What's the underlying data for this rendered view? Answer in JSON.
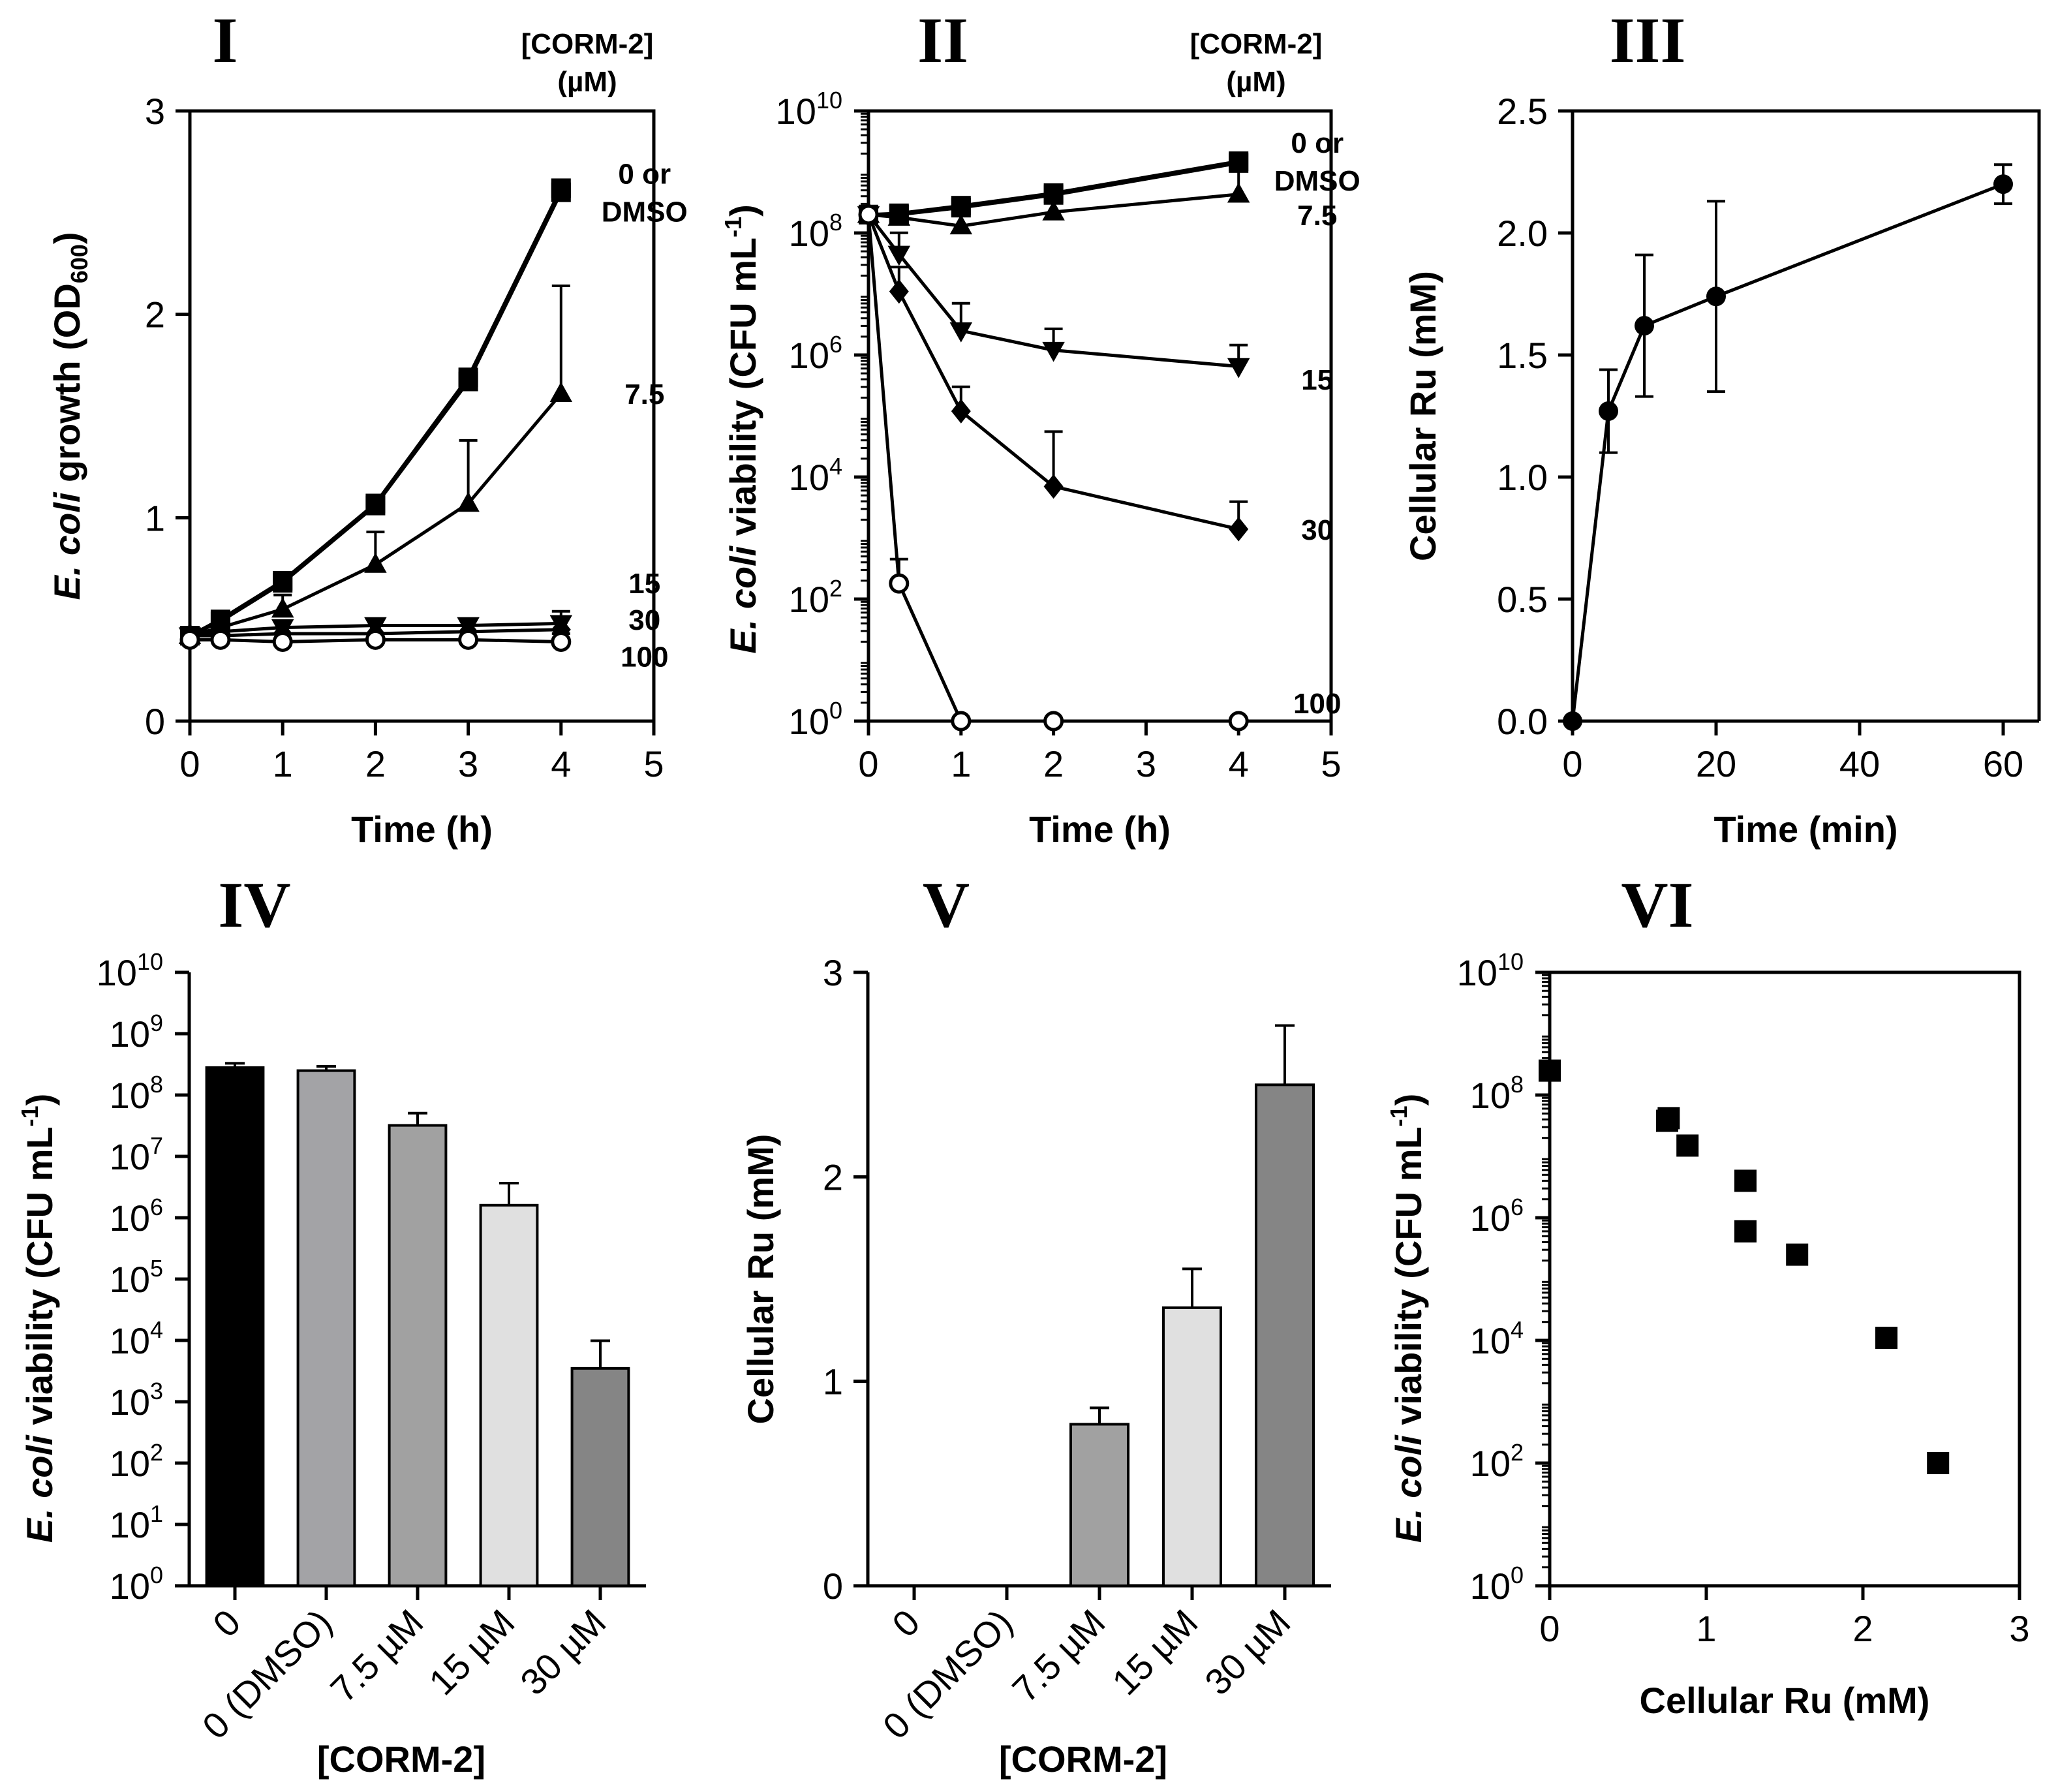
{
  "figure": {
    "background": "#ffffff",
    "ink": "#000000"
  },
  "chart_data": [
    {
      "id": "p1",
      "panel": "I",
      "type": "line",
      "xscale": "linear",
      "yscale": "linear",
      "xlabel": "Time (h)",
      "ylabel_parts": [
        "E. coli",
        " growth  (OD",
        "600",
        ")"
      ],
      "xlim": [
        0,
        5
      ],
      "ylim": [
        0,
        3
      ],
      "xticks": [
        0,
        1,
        2,
        3,
        4,
        5
      ],
      "yticks": [
        0,
        1,
        2,
        3
      ],
      "legend_title": [
        "[CORM-2]",
        "(µM)"
      ],
      "series": [
        {
          "name": "0",
          "marker": "square",
          "x": [
            0,
            0.33,
            1,
            2,
            3,
            4
          ],
          "y": [
            0.42,
            0.49,
            0.68,
            1.06,
            1.67,
            2.6
          ],
          "err": [
            0,
            0,
            0,
            0,
            0.05,
            0.05
          ]
        },
        {
          "name": "DMSO",
          "marker": "square",
          "x": [
            0,
            0.33,
            1,
            2,
            3,
            4
          ],
          "y": [
            0.42,
            0.5,
            0.69,
            1.07,
            1.69,
            2.62
          ],
          "err": [
            0,
            0,
            0,
            0,
            0,
            0
          ]
        },
        {
          "name": "7.5",
          "marker": "triangle-up",
          "x": [
            0,
            0.33,
            1,
            2,
            3,
            4
          ],
          "y": [
            0.42,
            0.46,
            0.55,
            0.77,
            1.07,
            1.61
          ],
          "err": [
            0,
            0,
            0.07,
            0.16,
            0.31,
            0.53
          ]
        },
        {
          "name": "15",
          "marker": "triangle-down",
          "x": [
            0,
            0.33,
            1,
            2,
            3,
            4
          ],
          "y": [
            0.42,
            0.44,
            0.46,
            0.47,
            0.47,
            0.48
          ],
          "err": [
            0,
            0,
            0,
            0,
            0,
            0.06
          ]
        },
        {
          "name": "30",
          "marker": "diamond",
          "x": [
            0,
            0.33,
            1,
            2,
            3,
            4
          ],
          "y": [
            0.42,
            0.42,
            0.43,
            0.43,
            0.44,
            0.45
          ],
          "err": [
            0,
            0,
            0,
            0,
            0,
            0
          ]
        },
        {
          "name": "100",
          "marker": "circle-open",
          "x": [
            0,
            0.33,
            1,
            2,
            3,
            4
          ],
          "y": [
            0.4,
            0.4,
            0.39,
            0.4,
            0.4,
            0.39
          ],
          "err": [
            0,
            0,
            0,
            0,
            0,
            0.04
          ]
        }
      ],
      "annotations": [
        {
          "lines": [
            "0 or",
            "DMSO"
          ],
          "x": 4.9,
          "y": 2.6
        },
        {
          "lines": [
            "7.5"
          ],
          "x": 4.9,
          "y": 1.61
        },
        {
          "lines": [
            "15"
          ],
          "x": 4.9,
          "y": 0.68
        },
        {
          "lines": [
            "30"
          ],
          "x": 4.9,
          "y": 0.5
        },
        {
          "lines": [
            "100"
          ],
          "x": 4.9,
          "y": 0.32
        }
      ]
    },
    {
      "id": "p2",
      "panel": "II",
      "type": "line",
      "xscale": "linear",
      "yscale": "log",
      "xlabel": "Time (h)",
      "ylabel_parts": [
        "E. coli",
        " viability (CFU mL",
        "-1",
        ")"
      ],
      "xlim": [
        0,
        5
      ],
      "ylim": [
        0,
        10
      ],
      "xticks": [
        0,
        1,
        2,
        3,
        4,
        5
      ],
      "ytick_exponents": [
        0,
        2,
        4,
        6,
        8,
        10
      ],
      "legend_title": [
        "[CORM-2]",
        "(µM)"
      ],
      "series": [
        {
          "name": "0",
          "marker": "square",
          "x": [
            0,
            0.33,
            1,
            2,
            4
          ],
          "y": [
            200000000,
            210000000,
            280000000,
            450000000,
            1500000000
          ],
          "err_log": [
            0,
            0,
            0,
            0,
            0
          ]
        },
        {
          "name": "DMSO",
          "marker": "square",
          "x": [
            0,
            0.33,
            1,
            2,
            4
          ],
          "y": [
            200000000,
            200000000,
            260000000,
            420000000,
            1400000000
          ],
          "err_log": [
            0,
            0,
            0,
            0,
            0
          ]
        },
        {
          "name": "7.5",
          "marker": "triangle-up",
          "x": [
            0,
            0.33,
            1,
            2,
            4
          ],
          "y": [
            200000000,
            180000000,
            130000000,
            220000000,
            430000000
          ],
          "err_log": [
            0,
            0,
            0,
            0.15,
            0.5
          ]
        },
        {
          "name": "15",
          "marker": "triangle-down",
          "x": [
            0,
            0.33,
            1,
            2,
            4
          ],
          "y": [
            200000000,
            45000000,
            2500000,
            1200000,
            650000
          ],
          "err_log": [
            0,
            0.35,
            0.45,
            0.35,
            0.35
          ]
        },
        {
          "name": "30",
          "marker": "diamond",
          "x": [
            0,
            0.33,
            1,
            2,
            4
          ],
          "y": [
            200000000,
            11000000,
            120000,
            7000,
            1400
          ],
          "err_log": [
            0,
            0.4,
            0.4,
            0.9,
            0.45
          ]
        },
        {
          "name": "100",
          "marker": "circle-open",
          "x": [
            0,
            0.33,
            1,
            2,
            4
          ],
          "y": [
            200000000,
            180,
            1,
            1,
            1
          ],
          "err_log": [
            0,
            0.4,
            0,
            0,
            0
          ]
        }
      ],
      "annotations": [
        {
          "lines": [
            "0 or",
            "DMSO"
          ],
          "x": 4.85,
          "y": 1500000000
        },
        {
          "lines": [
            "7.5"
          ],
          "x": 4.85,
          "y": 200000000
        },
        {
          "lines": [
            "15"
          ],
          "x": 4.85,
          "y": 400000
        },
        {
          "lines": [
            "30"
          ],
          "x": 4.85,
          "y": 1400
        },
        {
          "lines": [
            "100"
          ],
          "x": 4.85,
          "y": 2
        }
      ]
    },
    {
      "id": "p3",
      "panel": "III",
      "type": "line",
      "xscale": "linear",
      "yscale": "linear",
      "xlabel": "Time (min)",
      "ylabel_parts": [
        "Cellular Ru (mM)"
      ],
      "xlim": [
        0,
        65
      ],
      "ylim": [
        0,
        2.5
      ],
      "xticks": [
        0,
        20,
        40,
        60
      ],
      "yticks": [
        0,
        0.5,
        1,
        1.5,
        2,
        2.5
      ],
      "ytick_labels": [
        "0.0",
        "0.5",
        "1.0",
        "1.5",
        "2.0",
        "2.5"
      ],
      "series": [
        {
          "name": "Ru",
          "marker": "circle",
          "x": [
            0,
            5,
            10,
            20,
            60
          ],
          "y": [
            0,
            1.27,
            1.62,
            1.74,
            2.2
          ],
          "err": [
            0,
            0.17,
            0.29,
            0.39,
            0.08
          ]
        }
      ]
    },
    {
      "id": "p4",
      "panel": "IV",
      "type": "bar",
      "yscale": "log",
      "xlabel": "[CORM-2]",
      "ylabel_parts": [
        "E. coli",
        " viability (CFU mL",
        "-1",
        ")"
      ],
      "ylim": [
        0,
        10
      ],
      "ytick_exponents": [
        0,
        1,
        2,
        3,
        4,
        5,
        6,
        7,
        8,
        9,
        10
      ],
      "categories": [
        "0",
        "0 (DMSO)",
        "7.5 µM",
        "15 µM",
        "30 µM"
      ],
      "values": [
        280000000,
        250000000,
        32000000,
        1600000,
        3500
      ],
      "err_log": [
        0.07,
        0.07,
        0.2,
        0.36,
        0.45
      ],
      "colors": [
        "#000000",
        "#a3a3a6",
        "#a1a1a1",
        "#e0e0e0",
        "#858585"
      ]
    },
    {
      "id": "p5",
      "panel": "V",
      "type": "bar",
      "yscale": "linear",
      "xlabel": "[CORM-2]",
      "ylabel_parts": [
        "Cellular Ru (mM)"
      ],
      "ylim": [
        0,
        3
      ],
      "yticks": [
        0,
        1,
        2,
        3
      ],
      "categories": [
        "0",
        "0 (DMSO)",
        "7.5 µM",
        "15 µM",
        "30 µM"
      ],
      "values": [
        0,
        0,
        0.79,
        1.36,
        2.45
      ],
      "err": [
        0,
        0,
        0.08,
        0.19,
        0.29
      ],
      "colors": [
        "#000000",
        "#a3a3a6",
        "#a1a1a1",
        "#e0e0e0",
        "#858585"
      ]
    },
    {
      "id": "p6",
      "panel": "VI",
      "type": "scatter",
      "xscale": "linear",
      "yscale": "log",
      "xlabel": "Cellular Ru (mM)",
      "ylabel_parts": [
        "E. coli",
        " viability (CFU mL",
        "-1",
        ")"
      ],
      "xlim": [
        0,
        3
      ],
      "ylim": [
        0,
        10
      ],
      "xticks": [
        0,
        1,
        2,
        3
      ],
      "ytick_exponents": [
        0,
        2,
        4,
        6,
        8,
        10
      ],
      "series": [
        {
          "name": "points",
          "marker": "square",
          "x": [
            0,
            0.75,
            0.76,
            0.88,
            1.25,
            1.25,
            1.58,
            2.15,
            2.48
          ],
          "y": [
            250000000,
            38000000,
            42000000,
            15000000,
            4000000,
            600000,
            250000,
            11000,
            100
          ]
        }
      ]
    }
  ]
}
